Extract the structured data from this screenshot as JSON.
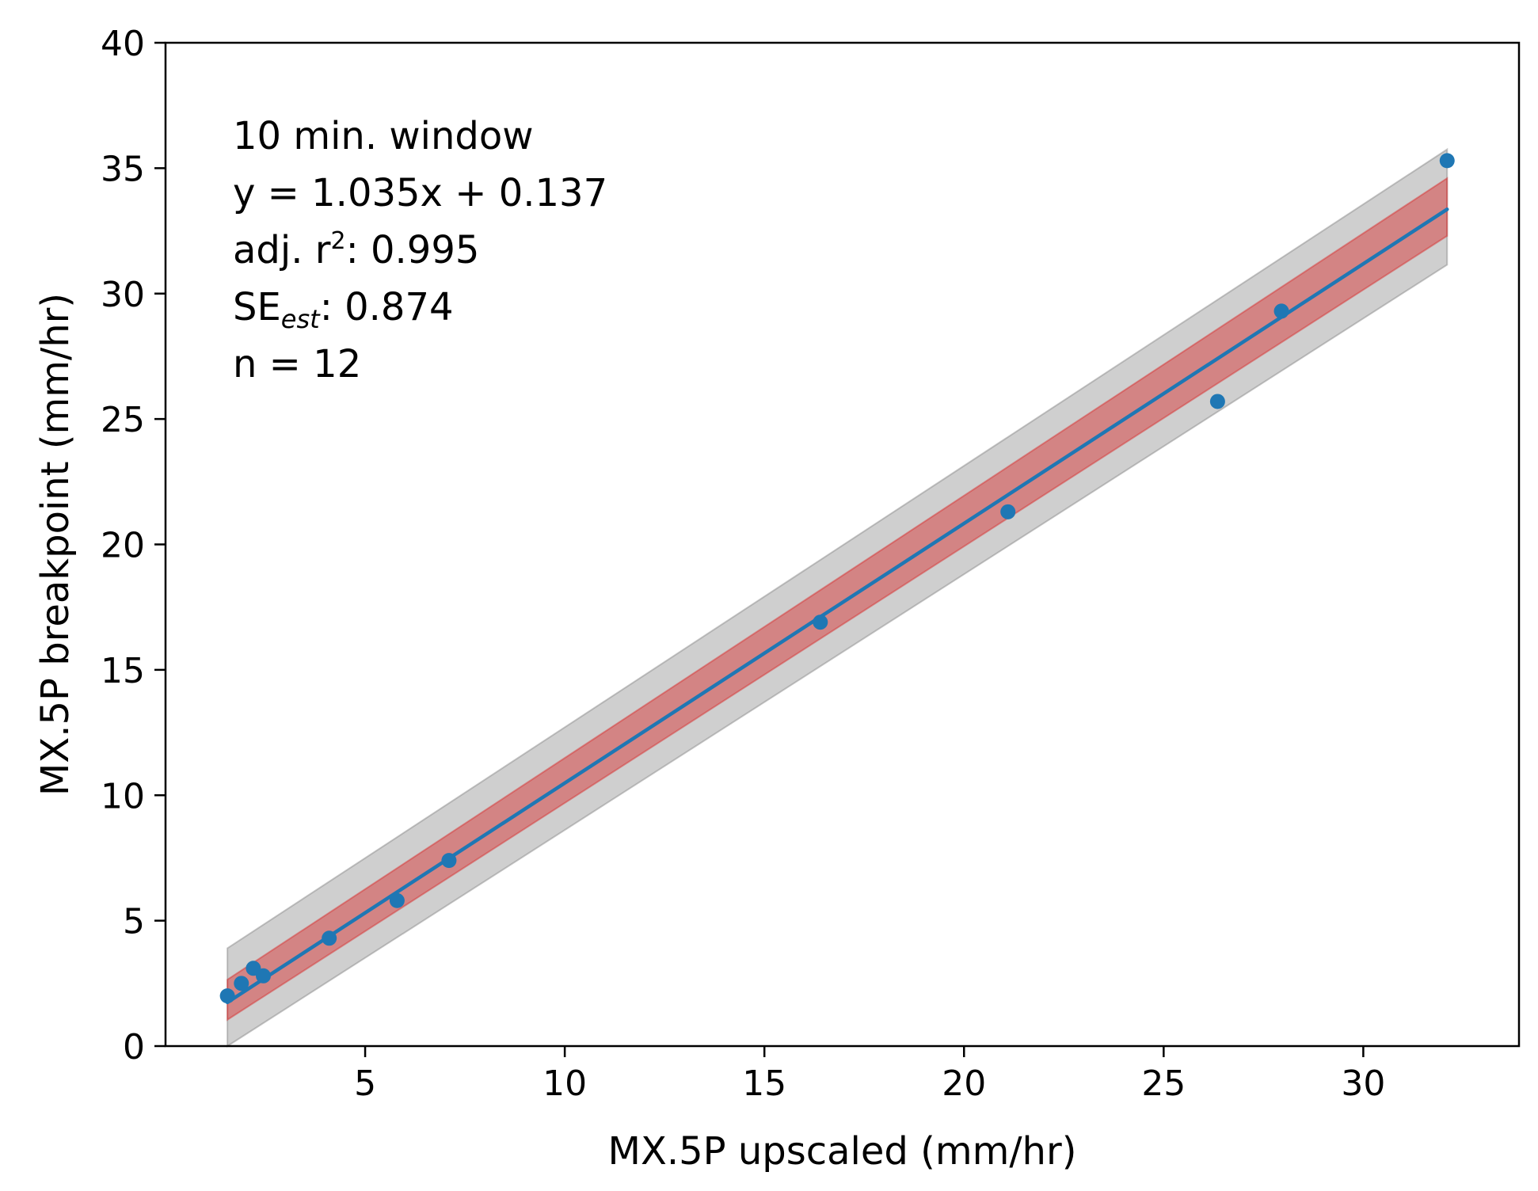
{
  "chart_data": {
    "type": "scatter",
    "xlabel": "MX.5P upscaled (mm/hr)",
    "ylabel": "MX.5P breakpoint (mm/hr)",
    "xlim": [
      0,
      33.9
    ],
    "ylim": [
      0,
      40
    ],
    "xticks": [
      5,
      10,
      15,
      20,
      25,
      30
    ],
    "yticks": [
      0,
      5,
      10,
      15,
      20,
      25,
      30,
      35,
      40
    ],
    "grid": false,
    "points": {
      "x": [
        1.55,
        1.9,
        2.2,
        2.45,
        4.1,
        5.8,
        7.1,
        16.4,
        21.1,
        26.35,
        27.95,
        32.1
      ],
      "y": [
        2.0,
        2.5,
        3.1,
        2.8,
        4.3,
        5.8,
        7.4,
        16.9,
        21.3,
        25.7,
        29.3,
        35.3
      ],
      "color": "#1f77b4"
    },
    "fit_line": {
      "slope": 1.035,
      "intercept": 0.137,
      "x_range": [
        1.55,
        32.1
      ],
      "color": "#1f77b4"
    },
    "confidence_band": {
      "lower_at_ends": [
        1.05,
        32.3
      ],
      "upper_at_ends": [
        2.65,
        34.6
      ],
      "color": "#d62728"
    },
    "prediction_band": {
      "lower_at_ends": [
        0,
        31.15
      ],
      "upper_at_ends": [
        3.9,
        35.75
      ],
      "color": "#808080"
    },
    "annotation": {
      "line1": "10 min. window",
      "line2": "y = 1.035x + 0.137",
      "line3_prefix": "adj. r",
      "line3_sup": "2",
      "line3_suffix": ": 0.995",
      "line4_prefix": "SE",
      "line4_sub": "est",
      "line4_suffix": ": 0.874",
      "line5": "n = 12"
    }
  }
}
